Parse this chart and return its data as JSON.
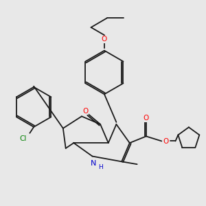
{
  "background_color": "#e8e8e8",
  "bond_color": "#1a1a1a",
  "atom_colors": {
    "O": "#ff0000",
    "N": "#0000cc",
    "Cl": "#008000",
    "C": "#1a1a1a"
  },
  "lw": 1.3
}
